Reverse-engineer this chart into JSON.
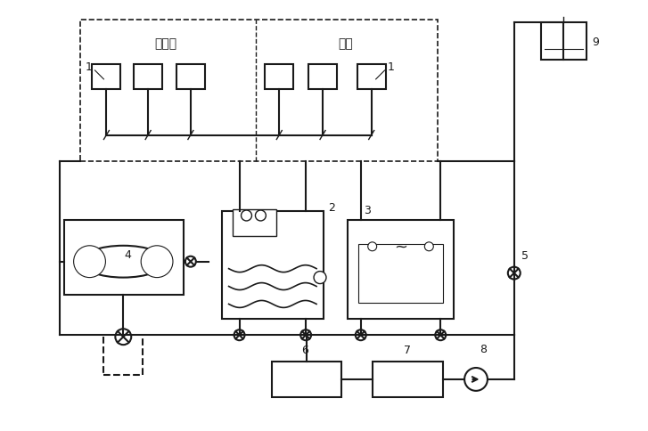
{
  "bg_color": "#ffffff",
  "line_color": "#1a1a1a",
  "lw": 1.5,
  "fig_w": 7.27,
  "fig_h": 4.85,
  "labels": {
    "zhou_bian": "周边区",
    "nei_qu": "内区",
    "num1a": "1",
    "num1b": "1",
    "num2": "2",
    "num3": "3",
    "num4": "4",
    "num5": "5",
    "num6": "6",
    "num7": "7",
    "num8": "8",
    "num9": "9"
  }
}
